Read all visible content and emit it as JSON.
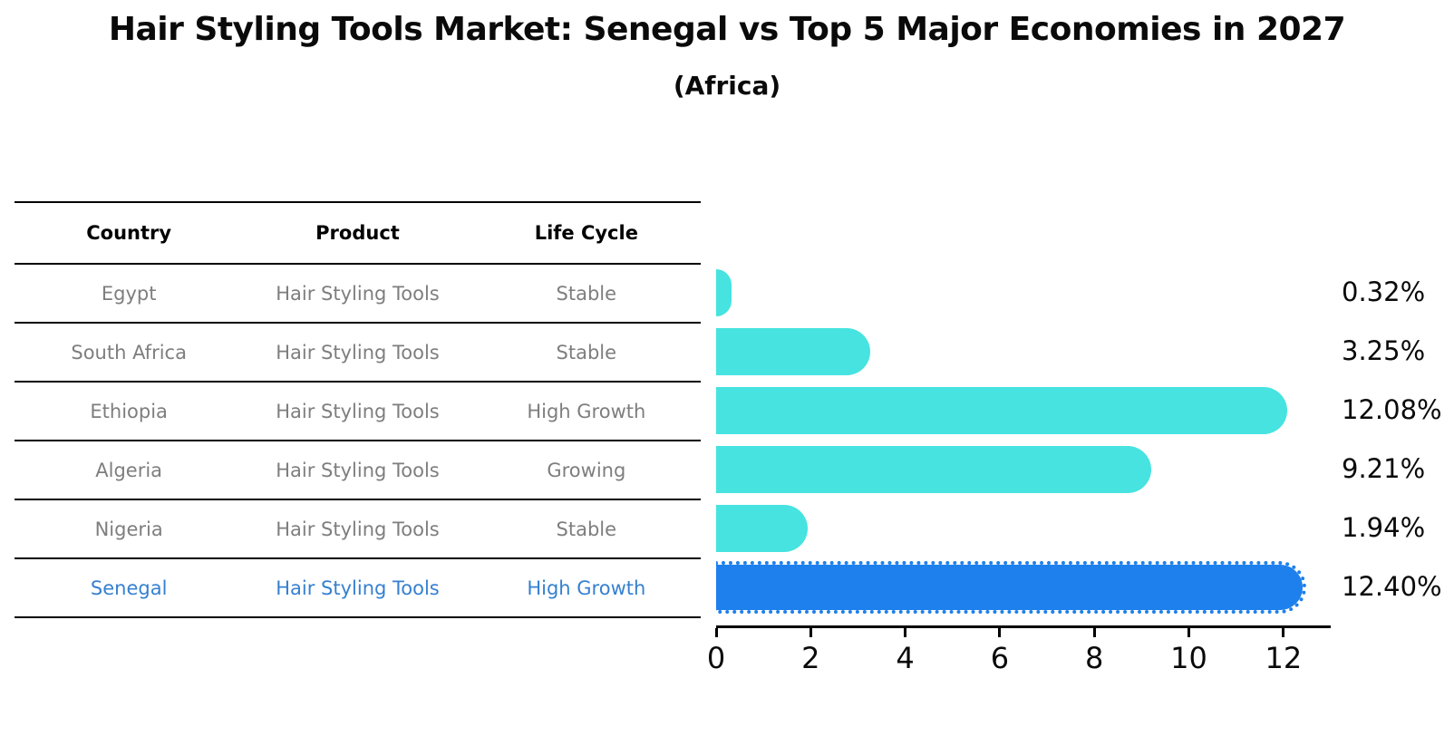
{
  "title": "Hair Styling Tools Market: Senegal vs Top 5 Major Economies in 2027",
  "subtitle": "(Africa)",
  "table": {
    "headers": [
      "Country",
      "Product",
      "Life Cycle"
    ],
    "rows": [
      {
        "country": "Egypt",
        "product": "Hair Styling Tools",
        "life_cycle": "Stable"
      },
      {
        "country": "South Africa",
        "product": "Hair Styling Tools",
        "life_cycle": "Stable"
      },
      {
        "country": "Ethiopia",
        "product": "Hair Styling Tools",
        "life_cycle": "High Growth"
      },
      {
        "country": "Algeria",
        "product": "Hair Styling Tools",
        "life_cycle": "Growing"
      },
      {
        "country": "Nigeria",
        "product": "Hair Styling Tools",
        "life_cycle": "Stable"
      },
      {
        "country": "Senegal",
        "product": "Hair Styling Tools",
        "life_cycle": "High Growth"
      }
    ],
    "highlight_row_index": 5
  },
  "chart_data": {
    "type": "bar",
    "orientation": "horizontal",
    "title": "Hair Styling Tools Market: Senegal vs Top 5 Major Economies in 2027 (Africa)",
    "categories": [
      "Egypt",
      "South Africa",
      "Ethiopia",
      "Algeria",
      "Nigeria",
      "Senegal"
    ],
    "values": [
      0.32,
      3.25,
      12.08,
      9.21,
      1.94,
      12.4
    ],
    "value_labels": [
      "0.32%",
      "3.25%",
      "12.08%",
      "9.21%",
      "1.94%",
      "12.40%"
    ],
    "xlabel": "",
    "ylabel": "",
    "xlim": [
      0,
      13
    ],
    "xticks": [
      0,
      2,
      4,
      6,
      8,
      10,
      12
    ],
    "grid": false,
    "legend": "none",
    "bar_color": "#46e3e0",
    "highlight_bar_color": "#1e80ec",
    "highlight_index": 5
  },
  "colors": {
    "background": "#ffffff",
    "text_primary": "#0a0a0a",
    "text_muted": "#7e7e7e",
    "highlight_text": "#3680d0",
    "bar": "#46e3e0",
    "highlight_bar": "#1e80ec",
    "axis_line": "#000000"
  }
}
